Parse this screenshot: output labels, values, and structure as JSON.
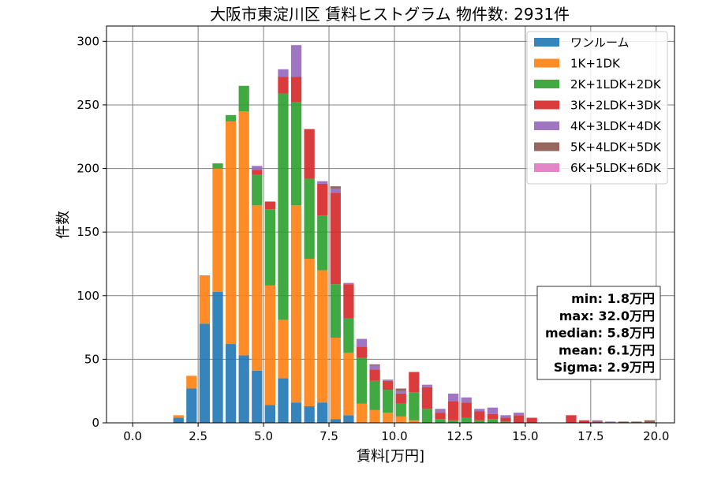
{
  "chart_data": {
    "type": "bar",
    "stacked": true,
    "title": "大阪市東淀川区 賃料ヒストグラム 物件数: 2931件",
    "xlabel": "賃料[万円]",
    "ylabel": "件数",
    "xlim": [
      -1.0,
      20.7
    ],
    "ylim": [
      0,
      312
    ],
    "x_ticks": [
      0.0,
      2.5,
      5.0,
      7.5,
      10.0,
      12.5,
      15.0,
      17.5,
      20.0
    ],
    "x_tick_labels": [
      "0.0",
      "2.5",
      "5.0",
      "7.5",
      "10.0",
      "12.5",
      "15.0",
      "17.5",
      "20.0"
    ],
    "y_ticks": [
      0,
      50,
      100,
      150,
      200,
      250,
      300
    ],
    "y_tick_labels": [
      "0",
      "50",
      "100",
      "150",
      "200",
      "250",
      "300"
    ],
    "grid": true,
    "legend_position": "top-right",
    "bin_width": 0.5,
    "x": [
      1.5,
      2.0,
      2.5,
      3.0,
      3.5,
      4.0,
      4.5,
      5.0,
      5.5,
      6.0,
      6.5,
      7.0,
      7.5,
      8.0,
      8.5,
      9.0,
      9.5,
      10.0,
      10.5,
      11.0,
      11.5,
      12.0,
      12.5,
      13.0,
      13.5,
      14.0,
      14.5,
      15.0,
      15.5,
      16.0,
      16.5,
      17.0,
      17.5,
      18.0,
      18.5,
      19.0,
      19.5
    ],
    "series": [
      {
        "name": "ワンルーム",
        "color": "#1f77b4",
        "values": [
          4,
          27,
          78,
          103,
          62,
          53,
          41,
          14,
          35,
          16,
          13,
          16,
          3,
          6,
          0,
          0,
          0,
          0,
          0,
          0,
          0,
          0,
          0,
          0,
          0,
          0,
          0,
          0,
          0,
          0,
          0,
          0,
          0,
          0,
          0,
          0,
          0
        ]
      },
      {
        "name": "1K+1DK",
        "color": "#ff7f0e",
        "values": [
          2,
          10,
          38,
          97,
          175,
          192,
          130,
          94,
          46,
          155,
          116,
          104,
          64,
          49,
          15,
          10,
          8,
          5,
          2,
          0,
          0,
          0,
          0,
          0,
          0,
          0,
          0,
          0,
          0,
          0,
          0,
          0,
          0,
          0,
          0,
          0,
          0
        ]
      },
      {
        "name": "2K+1LDK+2DK",
        "color": "#2ca02c",
        "values": [
          0,
          0,
          0,
          4,
          5,
          20,
          24,
          60,
          178,
          81,
          63,
          43,
          42,
          27,
          36,
          23,
          18,
          10,
          22,
          11,
          3,
          2,
          4,
          2,
          3,
          1,
          0,
          0,
          0,
          0,
          0,
          0,
          0,
          0,
          0,
          0,
          0
        ]
      },
      {
        "name": "3K+2LDK+3DK",
        "color": "#d62728",
        "values": [
          0,
          0,
          0,
          0,
          0,
          0,
          4,
          6,
          13,
          20,
          39,
          25,
          72,
          27,
          9,
          9,
          7,
          8,
          16,
          17,
          5,
          15,
          12,
          7,
          4,
          3,
          6,
          4,
          0,
          0,
          6,
          2,
          1,
          0,
          0,
          0,
          0
        ]
      },
      {
        "name": "4K+3LDK+4DK",
        "color": "#9467bd",
        "values": [
          0,
          0,
          0,
          0,
          0,
          0,
          3,
          0,
          6,
          25,
          0,
          2,
          3,
          1,
          6,
          3,
          1,
          2,
          0,
          2,
          3,
          6,
          4,
          2,
          5,
          2,
          2,
          0,
          0,
          0,
          0,
          0,
          1,
          1,
          0,
          0,
          0
        ]
      },
      {
        "name": "5K+4LDK+5DK",
        "color": "#8c564b",
        "values": [
          0,
          0,
          0,
          0,
          0,
          0,
          0,
          0,
          0,
          0,
          0,
          0,
          2,
          0,
          0,
          1,
          0,
          2,
          0,
          0,
          0,
          0,
          0,
          0,
          0,
          0,
          0,
          0,
          0,
          0,
          0,
          0,
          0,
          0,
          1,
          1,
          2
        ]
      },
      {
        "name": "6K+5LDK+6DK",
        "color": "#e377c2",
        "values": [
          0,
          0,
          0,
          0,
          0,
          0,
          0,
          0,
          0,
          0,
          0,
          0,
          0,
          0,
          0,
          0,
          0,
          0,
          0,
          0,
          0,
          0,
          0,
          0,
          0,
          0,
          0,
          0,
          0,
          0,
          0,
          0,
          0,
          0,
          0,
          0,
          0
        ]
      }
    ],
    "stats": [
      "min: 1.8万円",
      "max: 32.0万円",
      "median: 5.8万円",
      "mean: 6.1万円",
      "Sigma: 2.9万円"
    ]
  }
}
